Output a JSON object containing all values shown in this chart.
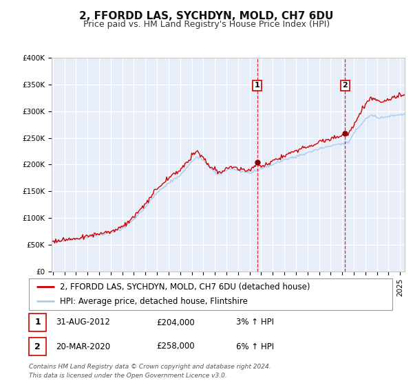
{
  "title": "2, FFORDD LAS, SYCHDYN, MOLD, CH7 6DU",
  "subtitle": "Price paid vs. HM Land Registry's House Price Index (HPI)",
  "legend_label_red": "2, FFORDD LAS, SYCHDYN, MOLD, CH7 6DU (detached house)",
  "legend_label_blue": "HPI: Average price, detached house, Flintshire",
  "annotation1_date": "31-AUG-2012",
  "annotation1_price": "£204,000",
  "annotation1_hpi": "3% ↑ HPI",
  "annotation2_date": "20-MAR-2020",
  "annotation2_price": "£258,000",
  "annotation2_hpi": "6% ↑ HPI",
  "footer_line1": "Contains HM Land Registry data © Crown copyright and database right 2024.",
  "footer_line2": "This data is licensed under the Open Government Licence v3.0.",
  "ylim": [
    0,
    400000
  ],
  "ytick_values": [
    0,
    50000,
    100000,
    150000,
    200000,
    250000,
    300000,
    350000,
    400000
  ],
  "ytick_labels": [
    "£0",
    "£50K",
    "£100K",
    "£150K",
    "£200K",
    "£250K",
    "£300K",
    "£350K",
    "£400K"
  ],
  "xlim_start": 1994.9,
  "xlim_end": 2025.4,
  "fig_bg_color": "#ffffff",
  "plot_bg_color": "#e8eef8",
  "grid_color": "#ffffff",
  "red_color": "#cc0000",
  "blue_color": "#aaccee",
  "dot_color": "#880000",
  "vline_color": "#dd0000",
  "title_fontsize": 11,
  "subtitle_fontsize": 9,
  "tick_fontsize": 7.5,
  "legend_fontsize": 8.5,
  "annot_fontsize": 8.5,
  "footer_fontsize": 6.5,
  "sale1_x": 2012.667,
  "sale1_y": 204000,
  "sale2_x": 2020.25,
  "sale2_y": 258000,
  "hpi_anchors": [
    [
      1995.0,
      57000
    ],
    [
      1996.0,
      58500
    ],
    [
      1997.0,
      61000
    ],
    [
      1998.0,
      64000
    ],
    [
      1999.0,
      68000
    ],
    [
      2000.0,
      72000
    ],
    [
      2001.0,
      80000
    ],
    [
      2002.0,
      97000
    ],
    [
      2003.0,
      120000
    ],
    [
      2004.0,
      148000
    ],
    [
      2005.0,
      165000
    ],
    [
      2006.0,
      180000
    ],
    [
      2007.0,
      205000
    ],
    [
      2007.5,
      215000
    ],
    [
      2008.0,
      208000
    ],
    [
      2008.5,
      196000
    ],
    [
      2009.0,
      185000
    ],
    [
      2009.5,
      182000
    ],
    [
      2010.0,
      190000
    ],
    [
      2010.5,
      192000
    ],
    [
      2011.0,
      188000
    ],
    [
      2011.5,
      186000
    ],
    [
      2012.0,
      185000
    ],
    [
      2012.667,
      190000
    ],
    [
      2013.0,
      192000
    ],
    [
      2013.5,
      195000
    ],
    [
      2014.0,
      200000
    ],
    [
      2014.5,
      205000
    ],
    [
      2015.0,
      210000
    ],
    [
      2015.5,
      212000
    ],
    [
      2016.0,
      215000
    ],
    [
      2016.5,
      218000
    ],
    [
      2017.0,
      222000
    ],
    [
      2017.5,
      225000
    ],
    [
      2018.0,
      230000
    ],
    [
      2018.5,
      232000
    ],
    [
      2019.0,
      235000
    ],
    [
      2019.5,
      238000
    ],
    [
      2020.0,
      238000
    ],
    [
      2020.25,
      242000
    ],
    [
      2020.5,
      240000
    ],
    [
      2021.0,
      258000
    ],
    [
      2021.5,
      272000
    ],
    [
      2022.0,
      285000
    ],
    [
      2022.5,
      292000
    ],
    [
      2023.0,
      290000
    ],
    [
      2023.5,
      288000
    ],
    [
      2024.0,
      290000
    ],
    [
      2024.5,
      292000
    ],
    [
      2025.0,
      294000
    ]
  ],
  "red_anchors": [
    [
      1995.0,
      57000
    ],
    [
      1996.0,
      59000
    ],
    [
      1997.0,
      62000
    ],
    [
      1998.0,
      66000
    ],
    [
      1999.0,
      70000
    ],
    [
      2000.0,
      75000
    ],
    [
      2001.0,
      84000
    ],
    [
      2002.0,
      102000
    ],
    [
      2003.0,
      126000
    ],
    [
      2004.0,
      155000
    ],
    [
      2005.0,
      175000
    ],
    [
      2006.0,
      190000
    ],
    [
      2007.0,
      215000
    ],
    [
      2007.5,
      225000
    ],
    [
      2008.0,
      212000
    ],
    [
      2008.5,
      198000
    ],
    [
      2009.0,
      188000
    ],
    [
      2009.5,
      185000
    ],
    [
      2010.0,
      192000
    ],
    [
      2010.5,
      196000
    ],
    [
      2011.0,
      192000
    ],
    [
      2011.5,
      190000
    ],
    [
      2012.0,
      188000
    ],
    [
      2012.667,
      204000
    ],
    [
      2013.0,
      196000
    ],
    [
      2013.5,
      200000
    ],
    [
      2014.0,
      206000
    ],
    [
      2014.5,
      212000
    ],
    [
      2015.0,
      218000
    ],
    [
      2015.5,
      222000
    ],
    [
      2016.0,
      226000
    ],
    [
      2016.5,
      230000
    ],
    [
      2017.0,
      234000
    ],
    [
      2017.5,
      238000
    ],
    [
      2018.0,
      242000
    ],
    [
      2018.5,
      246000
    ],
    [
      2019.0,
      248000
    ],
    [
      2019.5,
      252000
    ],
    [
      2020.0,
      254000
    ],
    [
      2020.25,
      258000
    ],
    [
      2020.5,
      256000
    ],
    [
      2021.0,
      275000
    ],
    [
      2021.5,
      295000
    ],
    [
      2022.0,
      312000
    ],
    [
      2022.5,
      325000
    ],
    [
      2023.0,
      320000
    ],
    [
      2023.5,
      316000
    ],
    [
      2024.0,
      320000
    ],
    [
      2024.5,
      326000
    ],
    [
      2025.0,
      330000
    ]
  ]
}
